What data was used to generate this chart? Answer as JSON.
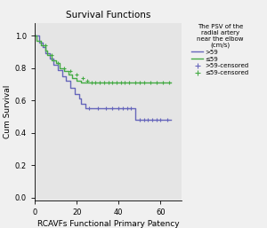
{
  "title": "Survival Functions",
  "xlabel": "RCAVFs Functional Primary Patency",
  "ylabel": "Cum Survival",
  "xlim": [
    0,
    70
  ],
  "ylim": [
    -0.02,
    1.08
  ],
  "xticks": [
    0,
    20.0,
    40.0,
    60.0
  ],
  "yticks": [
    0.0,
    0.2,
    0.4,
    0.6,
    0.8,
    1.0
  ],
  "bg_color": "#e5e5e5",
  "fig_color": "#f0f0f0",
  "legend_title": "The PSV of the\nradial artery\nnear the elbow\n(cm/s)",
  "color_gt59": "#6666bb",
  "color_le59": "#44aa44",
  "km_gt59_x": [
    0,
    2,
    2,
    4,
    4,
    5,
    5,
    7,
    7,
    9,
    9,
    11,
    11,
    13,
    13,
    15,
    15,
    17,
    17,
    19,
    19,
    21,
    21,
    22,
    22,
    24,
    24,
    26,
    26,
    30,
    30,
    35,
    35,
    38,
    38,
    48,
    48,
    50,
    50,
    65
  ],
  "km_gt59_y": [
    1.0,
    1.0,
    0.96,
    0.96,
    0.93,
    0.93,
    0.89,
    0.89,
    0.86,
    0.86,
    0.82,
    0.82,
    0.79,
    0.79,
    0.75,
    0.75,
    0.72,
    0.72,
    0.68,
    0.68,
    0.64,
    0.64,
    0.61,
    0.61,
    0.58,
    0.58,
    0.55,
    0.55,
    0.55,
    0.55,
    0.55,
    0.55,
    0.55,
    0.55,
    0.55,
    0.55,
    0.48,
    0.48,
    0.48,
    0.48
  ],
  "km_le59_x": [
    0,
    1,
    1,
    3,
    3,
    5,
    5,
    6,
    6,
    8,
    8,
    10,
    10,
    12,
    12,
    14,
    14,
    16,
    16,
    18,
    18,
    20,
    20,
    22,
    22,
    25,
    25,
    28,
    28,
    65
  ],
  "km_le59_y": [
    1.0,
    1.0,
    0.97,
    0.97,
    0.94,
    0.94,
    0.91,
    0.91,
    0.88,
    0.88,
    0.85,
    0.85,
    0.83,
    0.83,
    0.8,
    0.8,
    0.78,
    0.78,
    0.76,
    0.76,
    0.74,
    0.74,
    0.72,
    0.72,
    0.71,
    0.71,
    0.71,
    0.71,
    0.71,
    0.71
  ],
  "censored_gt59_x": [
    26,
    30,
    34,
    37,
    40,
    42,
    44,
    46,
    50,
    52,
    54,
    56,
    58,
    60,
    63
  ],
  "censored_gt59_y": [
    0.55,
    0.55,
    0.55,
    0.55,
    0.55,
    0.55,
    0.55,
    0.55,
    0.48,
    0.48,
    0.48,
    0.48,
    0.48,
    0.48,
    0.48
  ],
  "censored_le59_x": [
    5,
    8,
    11,
    14,
    17,
    20,
    23,
    25,
    27,
    29,
    31,
    33,
    35,
    37,
    39,
    41,
    43,
    45,
    48,
    50,
    52,
    55,
    58,
    61,
    64
  ],
  "censored_le59_y": [
    0.94,
    0.88,
    0.83,
    0.8,
    0.78,
    0.76,
    0.74,
    0.72,
    0.71,
    0.71,
    0.71,
    0.71,
    0.71,
    0.71,
    0.71,
    0.71,
    0.71,
    0.71,
    0.71,
    0.71,
    0.71,
    0.71,
    0.71,
    0.71,
    0.71
  ]
}
